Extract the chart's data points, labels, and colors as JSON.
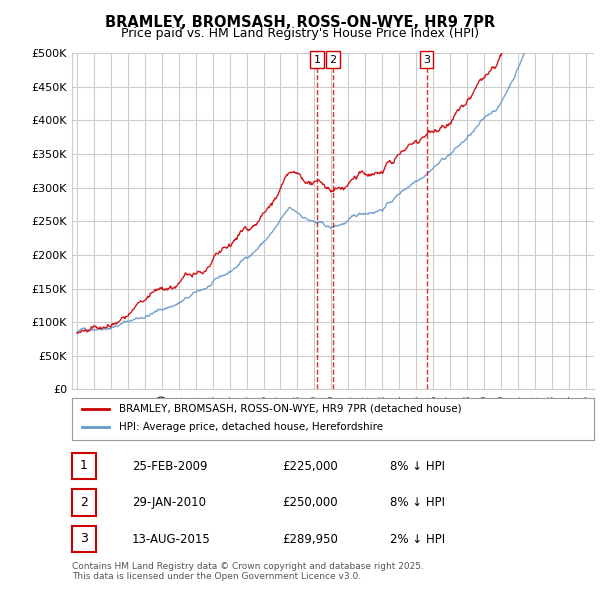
{
  "title": "BRAMLEY, BROMSASH, ROSS-ON-WYE, HR9 7PR",
  "subtitle": "Price paid vs. HM Land Registry's House Price Index (HPI)",
  "legend_label_red": "BRAMLEY, BROMSASH, ROSS-ON-WYE, HR9 7PR (detached house)",
  "legend_label_blue": "HPI: Average price, detached house, Herefordshire",
  "footer": "Contains HM Land Registry data © Crown copyright and database right 2025.\nThis data is licensed under the Open Government Licence v3.0.",
  "transactions": [
    {
      "num": 1,
      "date": "25-FEB-2009",
      "price": "£225,000",
      "hpi": "8% ↓ HPI"
    },
    {
      "num": 2,
      "date": "29-JAN-2010",
      "price": "£250,000",
      "hpi": "8% ↓ HPI"
    },
    {
      "num": 3,
      "date": "13-AUG-2015",
      "price": "£289,950",
      "hpi": "2% ↓ HPI"
    }
  ],
  "ylim": [
    0,
    500000
  ],
  "yticks": [
    0,
    50000,
    100000,
    150000,
    200000,
    250000,
    300000,
    350000,
    400000,
    450000,
    500000
  ],
  "red_color": "#cc0000",
  "blue_color": "#6699cc",
  "marker_line_color": "#cc0000",
  "grid_color": "#cccccc",
  "bg_color": "#ffffff",
  "plot_bg_color": "#ffffff"
}
